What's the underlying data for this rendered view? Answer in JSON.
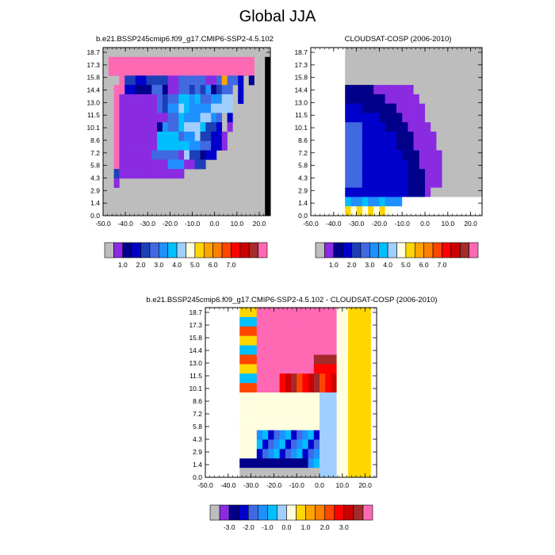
{
  "page": {
    "title": "Global JJA"
  },
  "palettes": {
    "top": [
      "#bdbdbd",
      "#8a2be2",
      "#00008b",
      "#0000cd",
      "#1c3fb8",
      "#4169e1",
      "#1e90ff",
      "#00bfff",
      "#a0cfff",
      "#ffffe0",
      "#ffd700",
      "#ffa500",
      "#ff7f00",
      "#ff4500",
      "#ff0000",
      "#cc0000",
      "#a52a2a",
      "#ff69b4"
    ],
    "diff": [
      "#bdbdbd",
      "#8a2be2",
      "#00008b",
      "#0000cd",
      "#4169e1",
      "#1e90ff",
      "#00bfff",
      "#a0cfff",
      "#ffffe0",
      "#ffd700",
      "#ffa500",
      "#ff7f00",
      "#ff4500",
      "#ff0000",
      "#cc0000",
      "#a52a2a",
      "#ff69b4"
    ]
  },
  "chart_data": [
    {
      "type": "heatmap",
      "title": "b.e21.BSSP245cmip6.f09_g17.CMIP6-SSP2-4.5.102",
      "x_ticks": [
        "-50.0",
        "-40.0",
        "-30.0",
        "-20.0",
        "-10.0",
        "0.0",
        "10.0",
        "20.0"
      ],
      "xlim": [
        -50,
        25
      ],
      "y_ticks": [
        "18.7",
        "17.3",
        "15.8",
        "14.4",
        "13.0",
        "11.5",
        "10.1",
        "8.6",
        "7.2",
        "5.8",
        "4.3",
        "2.9",
        "1.4",
        "0.0"
      ],
      "colorbar_labels": [
        "1.0",
        "2.0",
        "3.0",
        "4.0",
        "5.0",
        "6.0",
        "7.0"
      ],
      "palette": "top",
      "rows": [
        "...............................",
        ".MMMMMMMMMMMMMMMMMMMMMMMMMMM..",
        ".MMMMMMMMMMMMMMMMMMMMMMMMMMM..",
        "...MDDCCDDDDAAEEEEEAAEKEEC.B..",
        "..MMCCBBBEEBAAEEDEDFBDEE.C....",
        "..MAAAAAAAEDEEGGFGEEFFHH.C....",
        "..MAAAAAAAEDFFHGFFFFHHHH......",
        "..MAAAAAAAAAEEGFFFHHFE.C......",
        "..MAAAAAAABFEEGHHHGDDC.A......",
        "..MAAAAAAAGGGGEFFHDDCCA.......",
        "..MAAAAAAAGGGGGGFFEECCA.......",
        "..MAAAAAAEEEEEAHDDBCC.........",
        "..MAAAAAAAAAFFFAADD...........",
        "..DAAAAAAAAAAAA...............",
        "..A...........................",
        "..............................",
        "..............................",
        ".............................."
      ]
    },
    {
      "type": "heatmap",
      "title": "CLOUDSAT-COSP (2006-2010)",
      "x_ticks": [
        "-50.0",
        "-40.0",
        "-30.0",
        "-20.0",
        "-10.0",
        "0.0",
        "10.0",
        "20.0"
      ],
      "xlim": [
        -50,
        25
      ],
      "y_ticks": [
        "18.7",
        "17.3",
        "15.8",
        "14.4",
        "13.0",
        "11.5",
        "10.1",
        "8.6",
        "7.2",
        "5.8",
        "4.3",
        "2.9",
        "1.4",
        "0.0"
      ],
      "colorbar_labels": [
        "1.0",
        "2.0",
        "3.0",
        "4.0",
        "5.0",
        "6.0",
        "7.0"
      ],
      "palette": "top",
      "rows": []
    },
    {
      "type": "heatmap",
      "title": "b.e21.BSSP245cmip6.f09_g17.CMIP6-SSP2-4.5.102 - CLOUDSAT-COSP (2006-2010)",
      "x_ticks": [
        "-50.0",
        "-40.0",
        "-30.0",
        "-20.0",
        "-10.0",
        "0.0",
        "10.0",
        "20.0"
      ],
      "xlim": [
        -50,
        25
      ],
      "y_ticks": [
        "18.7",
        "17.3",
        "15.8",
        "14.4",
        "13.0",
        "11.5",
        "10.1",
        "8.6",
        "7.2",
        "5.8",
        "4.3",
        "2.9",
        "1.4",
        "0.0"
      ],
      "colorbar_labels": [
        "-3.0",
        "-2.0",
        "-1.0",
        "0.0",
        "1.0",
        "2.0",
        "3.0"
      ],
      "palette": "diff",
      "rows": []
    }
  ]
}
